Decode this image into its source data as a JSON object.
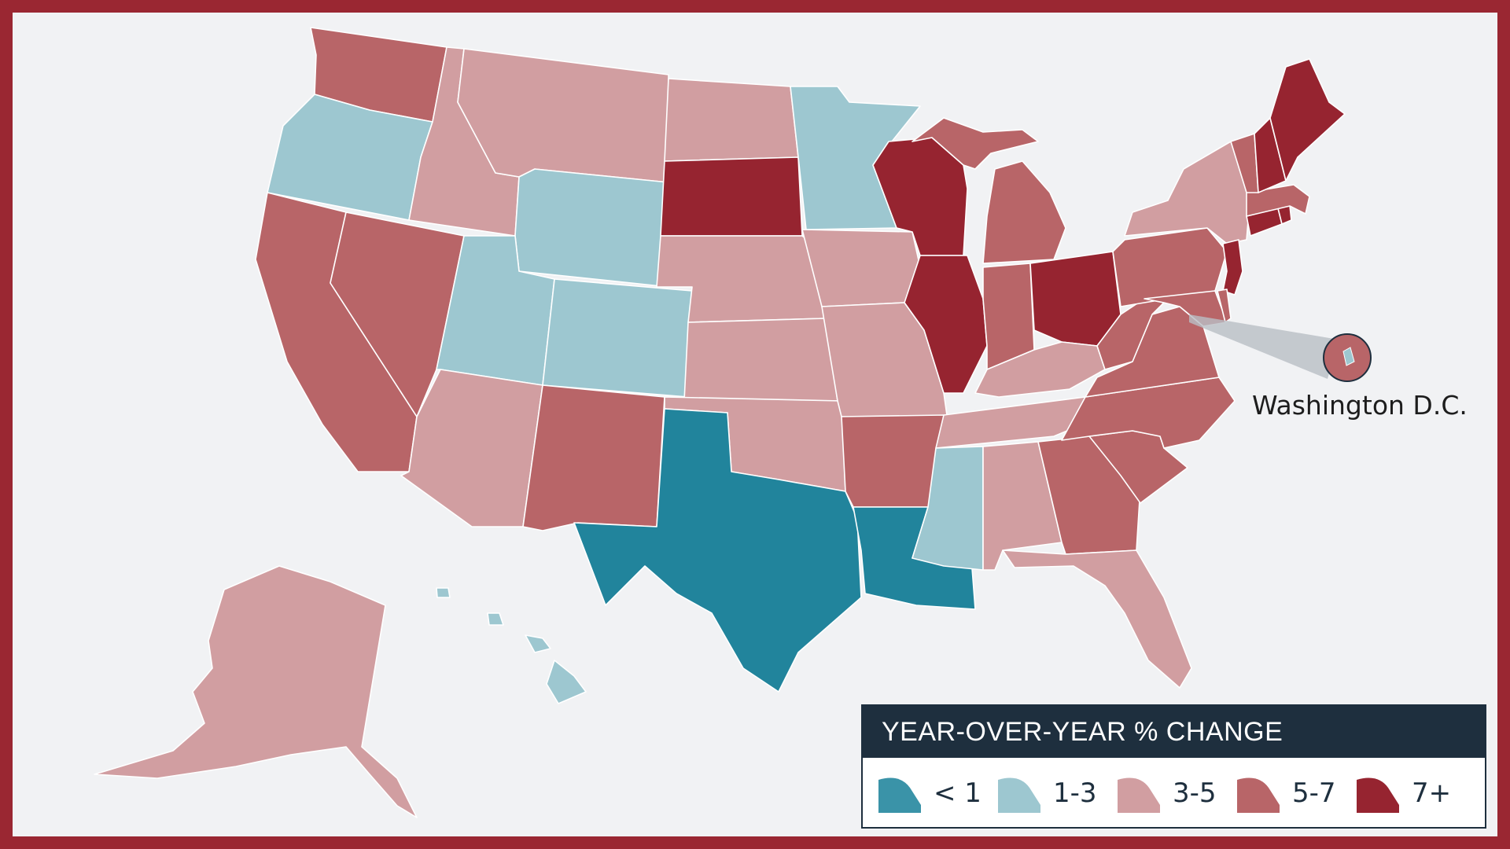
{
  "map": {
    "colors": {
      "lt1": "#21849c",
      "r1_3": "#9dc7d0",
      "r3_5": "#d19ea1",
      "r5_7": "#b86568",
      "r7p": "#962430"
    },
    "callout": {
      "label": "Washington D.C."
    }
  },
  "legend": {
    "title": "YEAR-OVER-YEAR % CHANGE",
    "items": [
      {
        "label": "< 1",
        "color": "#3a93a8"
      },
      {
        "label": "1-3",
        "color": "#9dc7d0"
      },
      {
        "label": "3-5",
        "color": "#d19ea1"
      },
      {
        "label": "5-7",
        "color": "#b86568"
      },
      {
        "label": "7+",
        "color": "#962430"
      }
    ]
  }
}
